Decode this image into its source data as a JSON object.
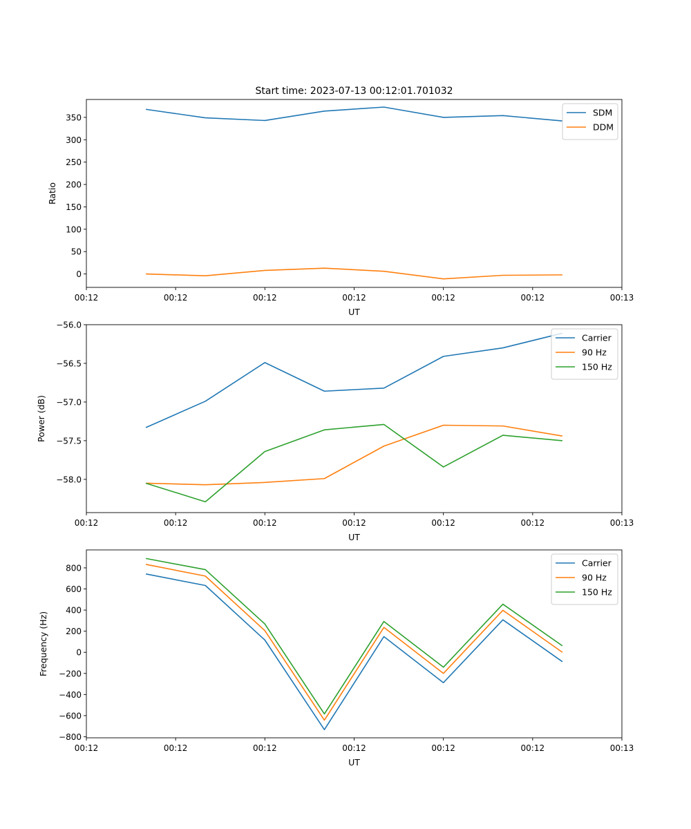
{
  "chart_data": [
    {
      "type": "line",
      "title": "Start time: 2023-07-13 00:12:01.701032",
      "xlabel": "UT",
      "ylabel": "Ratio",
      "x": [
        1,
        2,
        3,
        4,
        5,
        6,
        7,
        8
      ],
      "xlim": [
        0.0,
        9.0
      ],
      "xtick_values": [
        0.0,
        1.5,
        3.0,
        4.5,
        6.0,
        7.5,
        9.0
      ],
      "xtick_labels": [
        "00:12",
        "00:12",
        "00:12",
        "00:12",
        "00:12",
        "00:12",
        "00:13"
      ],
      "ylim": [
        -30,
        390
      ],
      "yticks": [
        0,
        50,
        100,
        150,
        200,
        250,
        300,
        350
      ],
      "legend": "top-right",
      "series": [
        {
          "name": "SDM",
          "color": "#1f77b4",
          "values": [
            368,
            349,
            343,
            364,
            373,
            350,
            354,
            342
          ]
        },
        {
          "name": "DDM",
          "color": "#ff7f0e",
          "values": [
            0,
            -4,
            8,
            13,
            6,
            -11,
            -3,
            -2
          ]
        }
      ]
    },
    {
      "type": "line",
      "title": "",
      "xlabel": "UT",
      "ylabel": "Power (dB)",
      "x": [
        1,
        2,
        3,
        4,
        5,
        6,
        7,
        8
      ],
      "xlim": [
        0.0,
        9.0
      ],
      "xtick_values": [
        0.0,
        1.5,
        3.0,
        4.5,
        6.0,
        7.5,
        9.0
      ],
      "xtick_labels": [
        "00:12",
        "00:12",
        "00:12",
        "00:12",
        "00:12",
        "00:12",
        "00:13"
      ],
      "ylim": [
        -58.43,
        -56.0
      ],
      "yticks": [
        -58.0,
        -57.5,
        -57.0,
        -56.5,
        -56.0
      ],
      "ytick_labels": [
        "−58.0",
        "−57.5",
        "−57.0",
        "−56.5",
        "−56.0"
      ],
      "legend": "top-right",
      "series": [
        {
          "name": "Carrier",
          "color": "#1f77b4",
          "values": [
            -57.33,
            -56.99,
            -56.49,
            -56.86,
            -56.82,
            -56.41,
            -56.3,
            -56.11
          ]
        },
        {
          "name": "90 Hz",
          "color": "#ff7f0e",
          "values": [
            -58.05,
            -58.07,
            -58.04,
            -57.99,
            -57.57,
            -57.3,
            -57.31,
            -57.44
          ]
        },
        {
          "name": "150 Hz",
          "color": "#2ca02c",
          "values": [
            -58.05,
            -58.29,
            -57.64,
            -57.36,
            -57.29,
            -57.84,
            -57.43,
            -57.5
          ]
        }
      ]
    },
    {
      "type": "line",
      "title": "",
      "xlabel": "UT",
      "ylabel": "Frequency (Hz)",
      "x": [
        1,
        2,
        3,
        4,
        5,
        6,
        7,
        8
      ],
      "xlim": [
        0.0,
        9.0
      ],
      "xtick_values": [
        0.0,
        1.5,
        3.0,
        4.5,
        6.0,
        7.5,
        9.0
      ],
      "xtick_labels": [
        "00:12",
        "00:12",
        "00:12",
        "00:12",
        "00:12",
        "00:12",
        "00:13"
      ],
      "ylim": [
        -810,
        970
      ],
      "yticks": [
        -800,
        -600,
        -400,
        -200,
        0,
        200,
        400,
        600,
        800
      ],
      "ytick_labels": [
        "−800",
        "−600",
        "−400",
        "−200",
        "0",
        "200",
        "400",
        "600",
        "800"
      ],
      "legend": "top-right",
      "series": [
        {
          "name": "Carrier",
          "color": "#1f77b4",
          "values": [
            742,
            633,
            116,
            -733,
            149,
            -288,
            308,
            -89
          ]
        },
        {
          "name": "90 Hz",
          "color": "#ff7f0e",
          "values": [
            833,
            722,
            205,
            -643,
            236,
            -200,
            398,
            0
          ]
        },
        {
          "name": "150 Hz",
          "color": "#2ca02c",
          "values": [
            889,
            783,
            268,
            -584,
            292,
            -141,
            456,
            61
          ]
        }
      ]
    }
  ]
}
